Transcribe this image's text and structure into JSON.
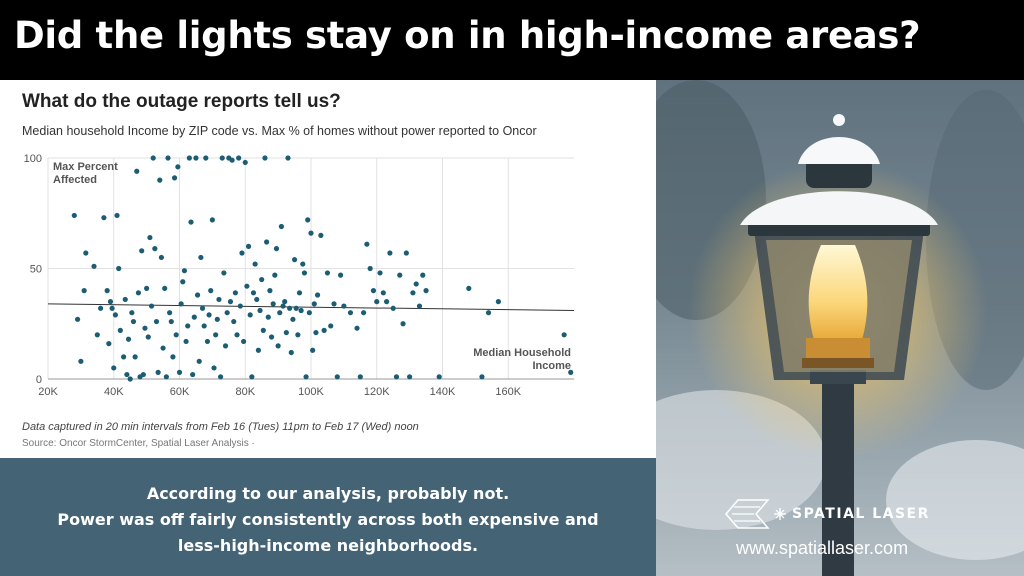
{
  "header": {
    "title": "Did the lights stay on in high-income areas?"
  },
  "chart_panel": {
    "title": "What do the outage reports tell us?",
    "subtitle": "Median household Income by ZIP code vs. Max % of homes without power reported to Oncor",
    "note": "Data captured in 20 min intervals from Feb 16 (Tues) 11pm to Feb 17 (Wed) noon",
    "source": "Source: Oncor StormCenter, Spatial Laser Analysis ·"
  },
  "chart_data": {
    "type": "scatter",
    "title": "What do the outage reports tell us?",
    "subtitle": "Median household Income by ZIP code vs. Max % of homes without power reported to Oncor",
    "ylabel_lines": [
      "Max Percent",
      "Affected"
    ],
    "xlabel_lines": [
      "Median Household",
      "Income"
    ],
    "xlim": [
      20000,
      180000
    ],
    "ylim": [
      0,
      100
    ],
    "x_ticks": [
      20000,
      40000,
      60000,
      80000,
      100000,
      120000,
      140000,
      160000
    ],
    "x_tick_labels": [
      "20K",
      "40K",
      "60K",
      "80K",
      "100K",
      "120K",
      "140K",
      "160K"
    ],
    "y_ticks": [
      0,
      50,
      100
    ],
    "y_tick_labels": [
      "0",
      "50",
      "100"
    ],
    "grid": true,
    "trendline": {
      "x": [
        20000,
        180000
      ],
      "y": [
        34,
        31
      ]
    },
    "point_color": "#1c5d74",
    "points": [
      [
        28000,
        74
      ],
      [
        29000,
        27
      ],
      [
        30000,
        8
      ],
      [
        31000,
        40
      ],
      [
        31500,
        57
      ],
      [
        34000,
        51
      ],
      [
        35000,
        20
      ],
      [
        36000,
        32
      ],
      [
        37000,
        73
      ],
      [
        38000,
        40
      ],
      [
        38500,
        16
      ],
      [
        39000,
        35
      ],
      [
        39500,
        32
      ],
      [
        40000,
        5
      ],
      [
        40500,
        29
      ],
      [
        41000,
        74
      ],
      [
        41500,
        50
      ],
      [
        42000,
        22
      ],
      [
        43000,
        10
      ],
      [
        43500,
        36
      ],
      [
        44000,
        2
      ],
      [
        44500,
        18
      ],
      [
        45000,
        0
      ],
      [
        45500,
        30
      ],
      [
        46000,
        26
      ],
      [
        46500,
        10
      ],
      [
        47000,
        94
      ],
      [
        47500,
        39
      ],
      [
        48000,
        1
      ],
      [
        48500,
        58
      ],
      [
        49000,
        2
      ],
      [
        49500,
        23
      ],
      [
        50000,
        41
      ],
      [
        50500,
        19
      ],
      [
        51000,
        64
      ],
      [
        51500,
        33
      ],
      [
        52000,
        100
      ],
      [
        52500,
        59
      ],
      [
        53000,
        26
      ],
      [
        53500,
        3
      ],
      [
        54000,
        90
      ],
      [
        54500,
        55
      ],
      [
        55000,
        14
      ],
      [
        55500,
        41
      ],
      [
        56000,
        1
      ],
      [
        56500,
        100
      ],
      [
        57000,
        30
      ],
      [
        57500,
        26
      ],
      [
        58000,
        10
      ],
      [
        58500,
        91
      ],
      [
        59000,
        20
      ],
      [
        59500,
        96
      ],
      [
        60000,
        3
      ],
      [
        60500,
        34
      ],
      [
        61000,
        44
      ],
      [
        61500,
        49
      ],
      [
        62000,
        17
      ],
      [
        62500,
        24
      ],
      [
        63000,
        100
      ],
      [
        63500,
        71
      ],
      [
        64000,
        2
      ],
      [
        64500,
        28
      ],
      [
        65000,
        100
      ],
      [
        65500,
        38
      ],
      [
        66000,
        8
      ],
      [
        66500,
        55
      ],
      [
        67000,
        32
      ],
      [
        67500,
        24
      ],
      [
        68000,
        100
      ],
      [
        68500,
        17
      ],
      [
        69000,
        29
      ],
      [
        69500,
        40
      ],
      [
        70000,
        72
      ],
      [
        70500,
        5
      ],
      [
        71000,
        20
      ],
      [
        71500,
        27
      ],
      [
        72000,
        36
      ],
      [
        72500,
        1
      ],
      [
        73000,
        100
      ],
      [
        73500,
        48
      ],
      [
        74000,
        15
      ],
      [
        74500,
        30
      ],
      [
        75000,
        100
      ],
      [
        75500,
        35
      ],
      [
        76000,
        99
      ],
      [
        76500,
        26
      ],
      [
        77000,
        39
      ],
      [
        77500,
        20
      ],
      [
        78000,
        100
      ],
      [
        78500,
        33
      ],
      [
        79000,
        57
      ],
      [
        79500,
        17
      ],
      [
        80000,
        98
      ],
      [
        80500,
        42
      ],
      [
        81000,
        60
      ],
      [
        81500,
        29
      ],
      [
        82000,
        1
      ],
      [
        82500,
        39
      ],
      [
        83000,
        52
      ],
      [
        83500,
        36
      ],
      [
        84000,
        13
      ],
      [
        84500,
        31
      ],
      [
        85000,
        45
      ],
      [
        85500,
        22
      ],
      [
        86000,
        100
      ],
      [
        86500,
        62
      ],
      [
        87000,
        28
      ],
      [
        87500,
        40
      ],
      [
        88000,
        19
      ],
      [
        88500,
        34
      ],
      [
        89000,
        47
      ],
      [
        89500,
        59
      ],
      [
        90000,
        15
      ],
      [
        90500,
        30
      ],
      [
        91000,
        69
      ],
      [
        91500,
        33
      ],
      [
        92000,
        35
      ],
      [
        92500,
        21
      ],
      [
        93000,
        100
      ],
      [
        93500,
        32
      ],
      [
        94000,
        12
      ],
      [
        94500,
        27
      ],
      [
        95000,
        54
      ],
      [
        95500,
        32
      ],
      [
        96000,
        20
      ],
      [
        96500,
        39
      ],
      [
        97000,
        31
      ],
      [
        97500,
        52
      ],
      [
        98000,
        48
      ],
      [
        98500,
        1
      ],
      [
        99000,
        72
      ],
      [
        99500,
        30
      ],
      [
        100000,
        66
      ],
      [
        100500,
        13
      ],
      [
        101000,
        34
      ],
      [
        101500,
        21
      ],
      [
        102000,
        38
      ],
      [
        103000,
        65
      ],
      [
        104000,
        22
      ],
      [
        105000,
        48
      ],
      [
        106000,
        24
      ],
      [
        107000,
        34
      ],
      [
        108000,
        1
      ],
      [
        109000,
        47
      ],
      [
        110000,
        33
      ],
      [
        112000,
        30
      ],
      [
        114000,
        23
      ],
      [
        115000,
        1
      ],
      [
        116000,
        30
      ],
      [
        117000,
        61
      ],
      [
        118000,
        50
      ],
      [
        119000,
        40
      ],
      [
        120000,
        35
      ],
      [
        121000,
        48
      ],
      [
        122000,
        39
      ],
      [
        123000,
        35
      ],
      [
        124000,
        57
      ],
      [
        125000,
        32
      ],
      [
        126000,
        1
      ],
      [
        127000,
        47
      ],
      [
        128000,
        25
      ],
      [
        129000,
        57
      ],
      [
        130000,
        1
      ],
      [
        131000,
        39
      ],
      [
        132000,
        43
      ],
      [
        133000,
        33
      ],
      [
        134000,
        47
      ],
      [
        135000,
        40
      ],
      [
        139000,
        1
      ],
      [
        148000,
        41
      ],
      [
        152000,
        1
      ],
      [
        154000,
        30
      ],
      [
        157000,
        35
      ],
      [
        177000,
        20
      ],
      [
        179000,
        3
      ]
    ]
  },
  "summary": {
    "line1": "According to our analysis, probably not.",
    "line2": "Power was off fairly consistently across both expensive and",
    "line3": "less-high-income neighborhoods."
  },
  "brand": {
    "name": "SPATIAL LASER",
    "website": "www.spatiallaser.com",
    "logo_icon": "laser-lines-logo-icon"
  },
  "photo": {
    "subject": "snow-covered-lamp-post-icon"
  }
}
